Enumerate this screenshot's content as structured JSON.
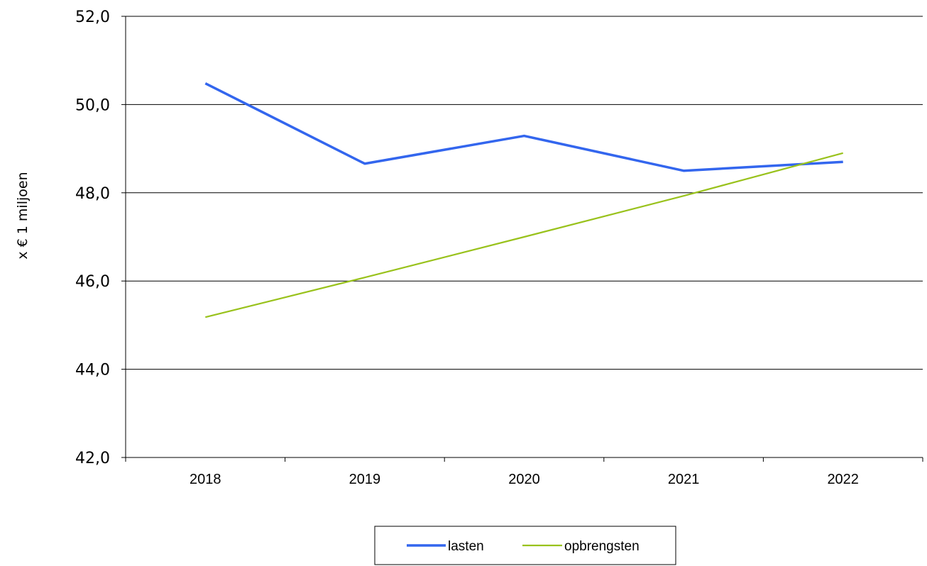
{
  "chart_data": {
    "type": "line",
    "title": "",
    "xlabel": "",
    "ylabel": "x € 1 miljoen",
    "categories": [
      "2018",
      "2019",
      "2020",
      "2021",
      "2022"
    ],
    "series": [
      {
        "name": "lasten",
        "values": [
          50.48,
          48.66,
          49.29,
          48.5,
          48.7
        ],
        "color": "#3366ee"
      },
      {
        "name": "opbrengsten",
        "values": [
          45.18,
          46.08,
          47.0,
          47.93,
          48.9
        ],
        "color": "#99c21c"
      }
    ],
    "ylim": [
      42,
      52
    ],
    "yticks": [
      "42,0",
      "44,0",
      "46,0",
      "48,0",
      "50,0",
      "52,0"
    ],
    "grid": true,
    "legend_position": "bottom-center"
  }
}
